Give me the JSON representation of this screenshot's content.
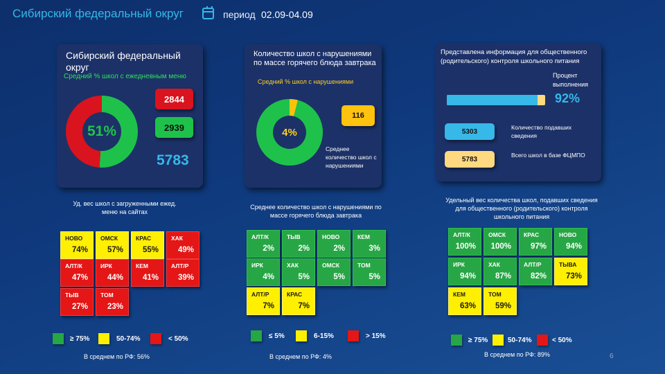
{
  "header": {
    "title": "Сибирский федеральный округ",
    "period_label": "период",
    "period_value": "02.09-04.09"
  },
  "panel1": {
    "title": "Сибирский федеральный округ",
    "subtitle": "Средний % школ с ежедневным меню",
    "percent": "51%",
    "percent_value": 51,
    "red_count": "2844",
    "green_count": "2939",
    "total": "5783",
    "colors": {
      "green": "#1ec24a",
      "red": "#d9141e",
      "accent": "#36b8e8"
    }
  },
  "panel2": {
    "title": "Количество школ с нарушениями по массе горячего блюда завтрака",
    "subtitle": "Средний % школ с нарушениями",
    "percent": "4%",
    "percent_value": 4,
    "count": "116",
    "note": "Среднее количество школ с нарушениями"
  },
  "panel3": {
    "title": "Представлена информация для общественного (родительского) контроля школьного питания",
    "progress_label": "Процент выполнения",
    "progress_value": "92%",
    "progress_fraction": 0.92,
    "submitted_count": "5303",
    "submitted_label": "Количество подавших сведения",
    "total_count": "5783",
    "total_label": "Всего школ в базе ФЦМПО"
  },
  "section1": {
    "caption": "Уд. вес школ с загруженными ежед. меню на сайтах",
    "cells": [
      {
        "name": "НОВО",
        "value": "74%",
        "color": "yellow"
      },
      {
        "name": "ОМСК",
        "value": "57%",
        "color": "yellow"
      },
      {
        "name": "КРАС",
        "value": "55%",
        "color": "yellow"
      },
      {
        "name": "ХАК",
        "value": "49%",
        "color": "red"
      },
      {
        "name": "АЛТ/К",
        "value": "47%",
        "color": "red"
      },
      {
        "name": "ИРК",
        "value": "44%",
        "color": "red"
      },
      {
        "name": "КЕМ",
        "value": "41%",
        "color": "red"
      },
      {
        "name": "АЛТ/Р",
        "value": "39%",
        "color": "red"
      },
      {
        "name": "ТЫВ",
        "value": "27%",
        "color": "red"
      },
      {
        "name": "ТОМ",
        "value": "23%",
        "color": "red"
      }
    ],
    "legend": [
      "≥ 75%",
      "50-74%",
      "< 50%"
    ],
    "average": "В среднем по РФ: 56%"
  },
  "section2": {
    "caption": "Среднее количество школ с нарушениями по массе горячего блюда завтрака",
    "cells": [
      {
        "name": "АЛТ/К",
        "value": "2%",
        "color": "green"
      },
      {
        "name": "ТЫВ",
        "value": "2%",
        "color": "green"
      },
      {
        "name": "НОВО",
        "value": "2%",
        "color": "green"
      },
      {
        "name": "КЕМ",
        "value": "3%",
        "color": "green"
      },
      {
        "name": "ИРК",
        "value": "4%",
        "color": "green"
      },
      {
        "name": "ХАК",
        "value": "5%",
        "color": "green"
      },
      {
        "name": "ОМСК",
        "value": "5%",
        "color": "green"
      },
      {
        "name": "ТОМ",
        "value": "5%",
        "color": "green"
      },
      {
        "name": "АЛТ/Р",
        "value": "7%",
        "color": "yellow"
      },
      {
        "name": "КРАС",
        "value": "7%",
        "color": "yellow"
      }
    ],
    "legend": [
      "≤ 5%",
      "6-15%",
      "> 15%"
    ],
    "average": "В среднем по РФ: 4%"
  },
  "section3": {
    "caption": "Удельный вес количества школ, подавших сведения для общественного (родительского) контроля школьного питания",
    "cells": [
      {
        "name": "АЛТ/К",
        "value": "100%",
        "color": "green"
      },
      {
        "name": "ОМСК",
        "value": "100%",
        "color": "green"
      },
      {
        "name": "КРАС",
        "value": "97%",
        "color": "green"
      },
      {
        "name": "НОВО",
        "value": "94%",
        "color": "green"
      },
      {
        "name": "ИРК",
        "value": "94%",
        "color": "green"
      },
      {
        "name": "ХАК",
        "value": "87%",
        "color": "green"
      },
      {
        "name": "АЛТ/Р",
        "value": "82%",
        "color": "green"
      },
      {
        "name": "ТЫВА",
        "value": "73%",
        "color": "yellow"
      },
      {
        "name": "КЕМ",
        "value": "63%",
        "color": "yellow"
      },
      {
        "name": "ТОМ",
        "value": "59%",
        "color": "yellow"
      }
    ],
    "legend": [
      "≥ 75%",
      "50-74%",
      "< 50%"
    ],
    "average": "В среднем по РФ: 89%"
  },
  "page_number": "6"
}
